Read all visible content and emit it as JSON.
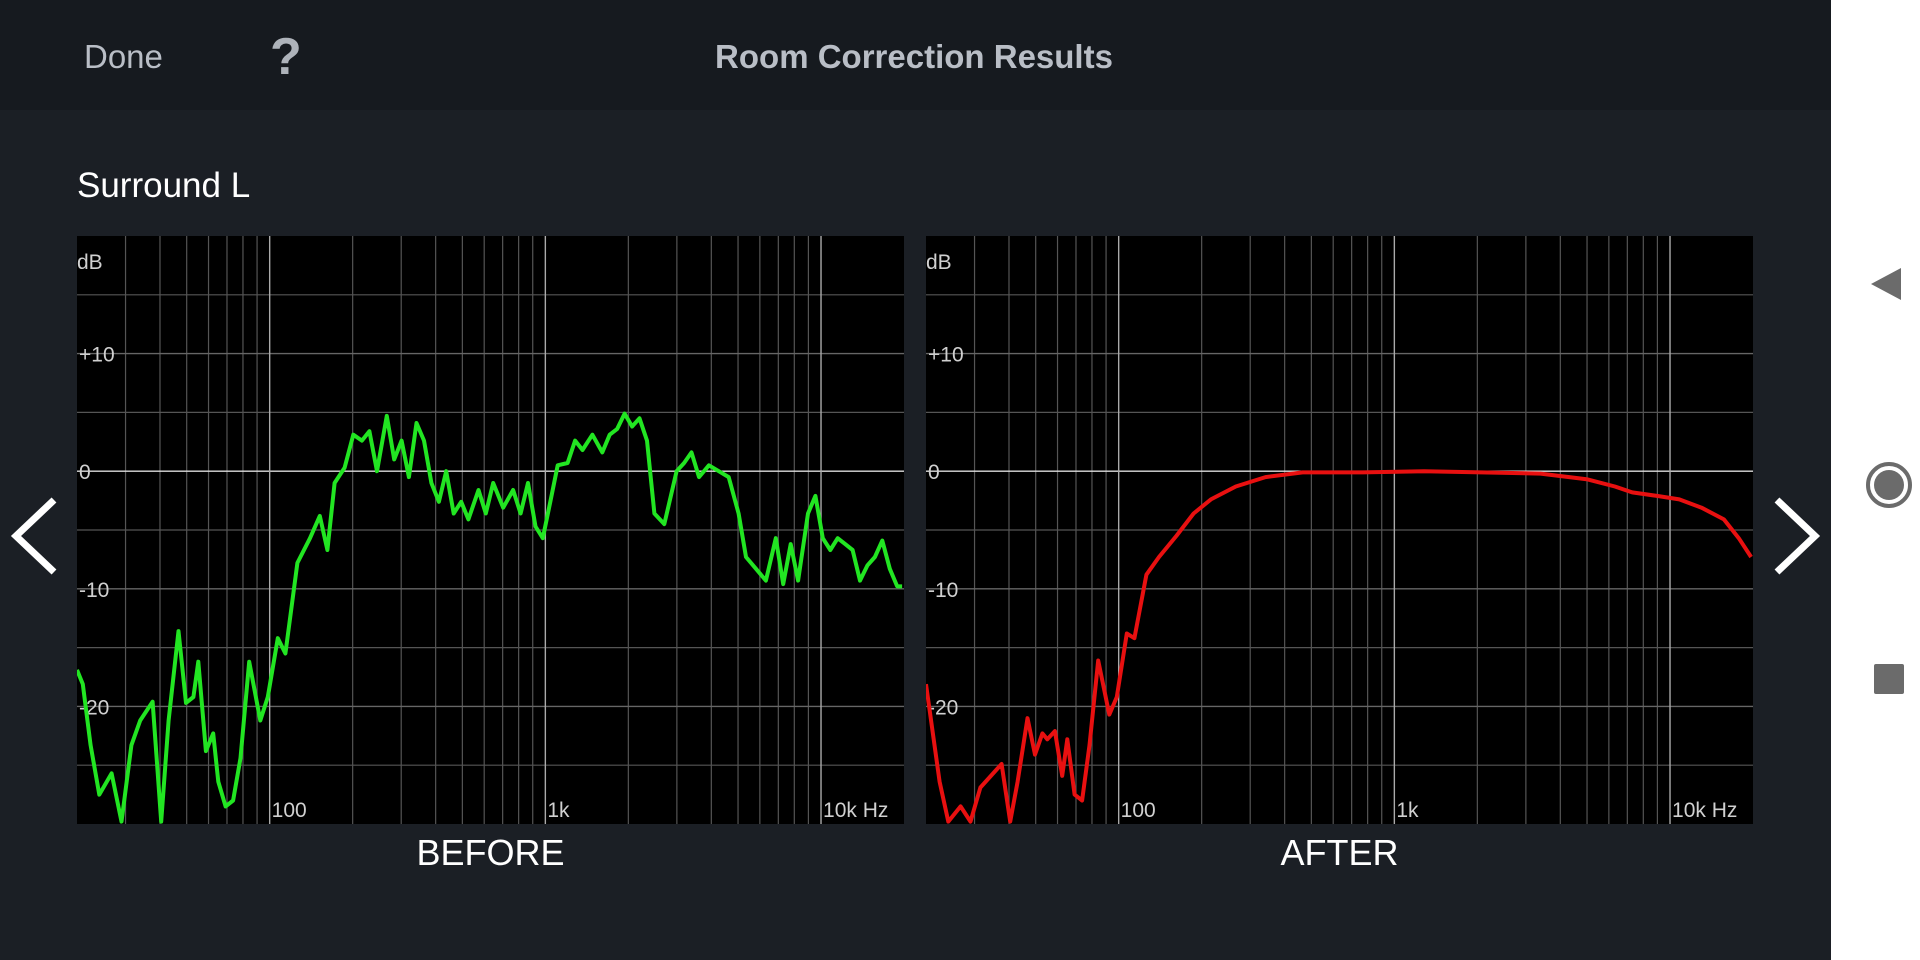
{
  "header": {
    "done": "Done",
    "help": "?",
    "title": "Room Correction Results"
  },
  "channel": "Surround L",
  "chart_data": [
    {
      "type": "line",
      "xlabel": "BEFORE",
      "ylabel": "dB",
      "color": "#22e522",
      "xscale": "log",
      "grid": true,
      "xlim": [
        20,
        20000
      ],
      "ylim": [
        -30,
        20
      ],
      "xticks": [
        100,
        {
          "value": 1000,
          "label": "1k"
        },
        {
          "value": 10000,
          "label": "10k Hz"
        }
      ],
      "minor_xticks": [
        30,
        40,
        50,
        60,
        70,
        80,
        90,
        200,
        300,
        400,
        500,
        600,
        700,
        800,
        900,
        2000,
        3000,
        4000,
        5000,
        6000,
        7000,
        8000,
        9000
      ],
      "yticks": [
        -20,
        -10,
        0,
        {
          "value": 10,
          "label": "+10"
        }
      ],
      "minor_yticks": [
        -25,
        -15,
        -5,
        5,
        15
      ],
      "x": [
        20,
        21,
        22.4,
        24.1,
        26.7,
        29,
        31.5,
        33.9,
        37.6,
        40.4,
        43,
        46.7,
        49.7,
        52.9,
        55.1,
        58.7,
        62.4,
        65.1,
        69.2,
        73.7,
        78.4,
        84.3,
        92.5,
        98.4,
        107,
        114,
        126,
        140,
        152,
        162,
        172,
        187,
        201,
        216,
        230,
        245,
        266,
        283,
        301,
        320,
        341,
        363,
        386,
        411,
        437,
        465,
        495,
        526,
        572,
        608,
        647,
        703,
        764,
        813,
        865,
        921,
        979,
        1042,
        1109,
        1204,
        1282,
        1364,
        1482,
        1609,
        1712,
        1822,
        1939,
        2064,
        2196,
        2337,
        2487,
        2700,
        2994,
        3186,
        3391,
        3608,
        3920,
        4259,
        4624,
        5024,
        5346,
        5808,
        6308,
        6852,
        7292,
        7760,
        8256,
        8970,
        9544,
        10154,
        10806,
        11500,
        12234,
        13020,
        13852,
        14740,
        15686,
        16688,
        17758,
        18896,
        19692
      ],
      "values": [
        -16.9,
        -18.1,
        -23.3,
        -27.5,
        -25.7,
        -29.8,
        -23.3,
        -21.2,
        -19.6,
        -29.8,
        -21.2,
        -13.6,
        -19.7,
        -19.2,
        -16.2,
        -23.8,
        -22.3,
        -26.4,
        -28.5,
        -28,
        -24.4,
        -16.2,
        -21.2,
        -19.2,
        -14.2,
        -15.5,
        -7.8,
        -5.7,
        -3.8,
        -6.7,
        -1,
        0.3,
        3.1,
        2.6,
        3.4,
        0,
        4.7,
        1,
        2.6,
        -0.5,
        4.1,
        2.6,
        -1,
        -2.6,
        0,
        -3.6,
        -2.6,
        -4.1,
        -1.6,
        -3.6,
        -1,
        -3.1,
        -1.6,
        -3.6,
        -1,
        -4.7,
        -5.7,
        -2.6,
        0.5,
        0.7,
        2.6,
        1.8,
        3.1,
        1.6,
        3.1,
        3.6,
        4.9,
        3.8,
        4.5,
        2.6,
        -3.6,
        -4.5,
        0,
        0.7,
        1.6,
        -0.5,
        0.5,
        0,
        -0.5,
        -3.6,
        -7.3,
        -8.3,
        -9.3,
        -5.7,
        -9.6,
        -6.2,
        -9.3,
        -3.6,
        -2.1,
        -5.7,
        -6.7,
        -5.7,
        -6.2,
        -6.7,
        -9.3,
        -8,
        -7.3,
        -5.9,
        -8.3,
        -9.8,
        -9.8
      ]
    },
    {
      "type": "line",
      "xlabel": "AFTER",
      "ylabel": "dB",
      "color": "#e81010",
      "xscale": "log",
      "grid": true,
      "xlim": [
        20,
        20000
      ],
      "ylim": [
        -30,
        20
      ],
      "xticks": [
        100,
        {
          "value": 1000,
          "label": "1k"
        },
        {
          "value": 10000,
          "label": "10k Hz"
        }
      ],
      "minor_xticks": [
        30,
        40,
        50,
        60,
        70,
        80,
        90,
        200,
        300,
        400,
        500,
        600,
        700,
        800,
        900,
        2000,
        3000,
        4000,
        5000,
        6000,
        7000,
        8000,
        9000
      ],
      "yticks": [
        -20,
        -10,
        0,
        {
          "value": 10,
          "label": "+10"
        }
      ],
      "minor_yticks": [
        -25,
        -15,
        -5,
        5,
        15
      ],
      "x": [
        20,
        22.4,
        24.1,
        26.7,
        29,
        31.5,
        37.6,
        40.4,
        43,
        46.7,
        49.7,
        52.9,
        55.1,
        58.7,
        62.4,
        65.1,
        69.2,
        73.7,
        78.4,
        84.3,
        92.5,
        98.4,
        107,
        114,
        126,
        140,
        162,
        187,
        216,
        266,
        341,
        465,
        764,
        1282,
        2064,
        3391,
        5024,
        6308,
        7292,
        8970,
        10806,
        13020,
        15686,
        17758,
        19692
      ],
      "values": [
        -18.1,
        -26.4,
        -29.8,
        -28.5,
        -29.8,
        -26.9,
        -24.9,
        -29.8,
        -26.4,
        -21,
        -24.1,
        -22.3,
        -22.8,
        -22.1,
        -25.9,
        -22.8,
        -27.5,
        -28,
        -23.3,
        -16.1,
        -20.7,
        -19.2,
        -13.8,
        -14.2,
        -8.8,
        -7.3,
        -5.5,
        -3.6,
        -2.4,
        -1.3,
        -0.5,
        -0.1,
        -0.1,
        0,
        -0.1,
        -0.2,
        -0.7,
        -1.3,
        -1.8,
        -2.1,
        -2.4,
        -3.1,
        -4.1,
        -5.7,
        -7.3
      ]
    }
  ]
}
